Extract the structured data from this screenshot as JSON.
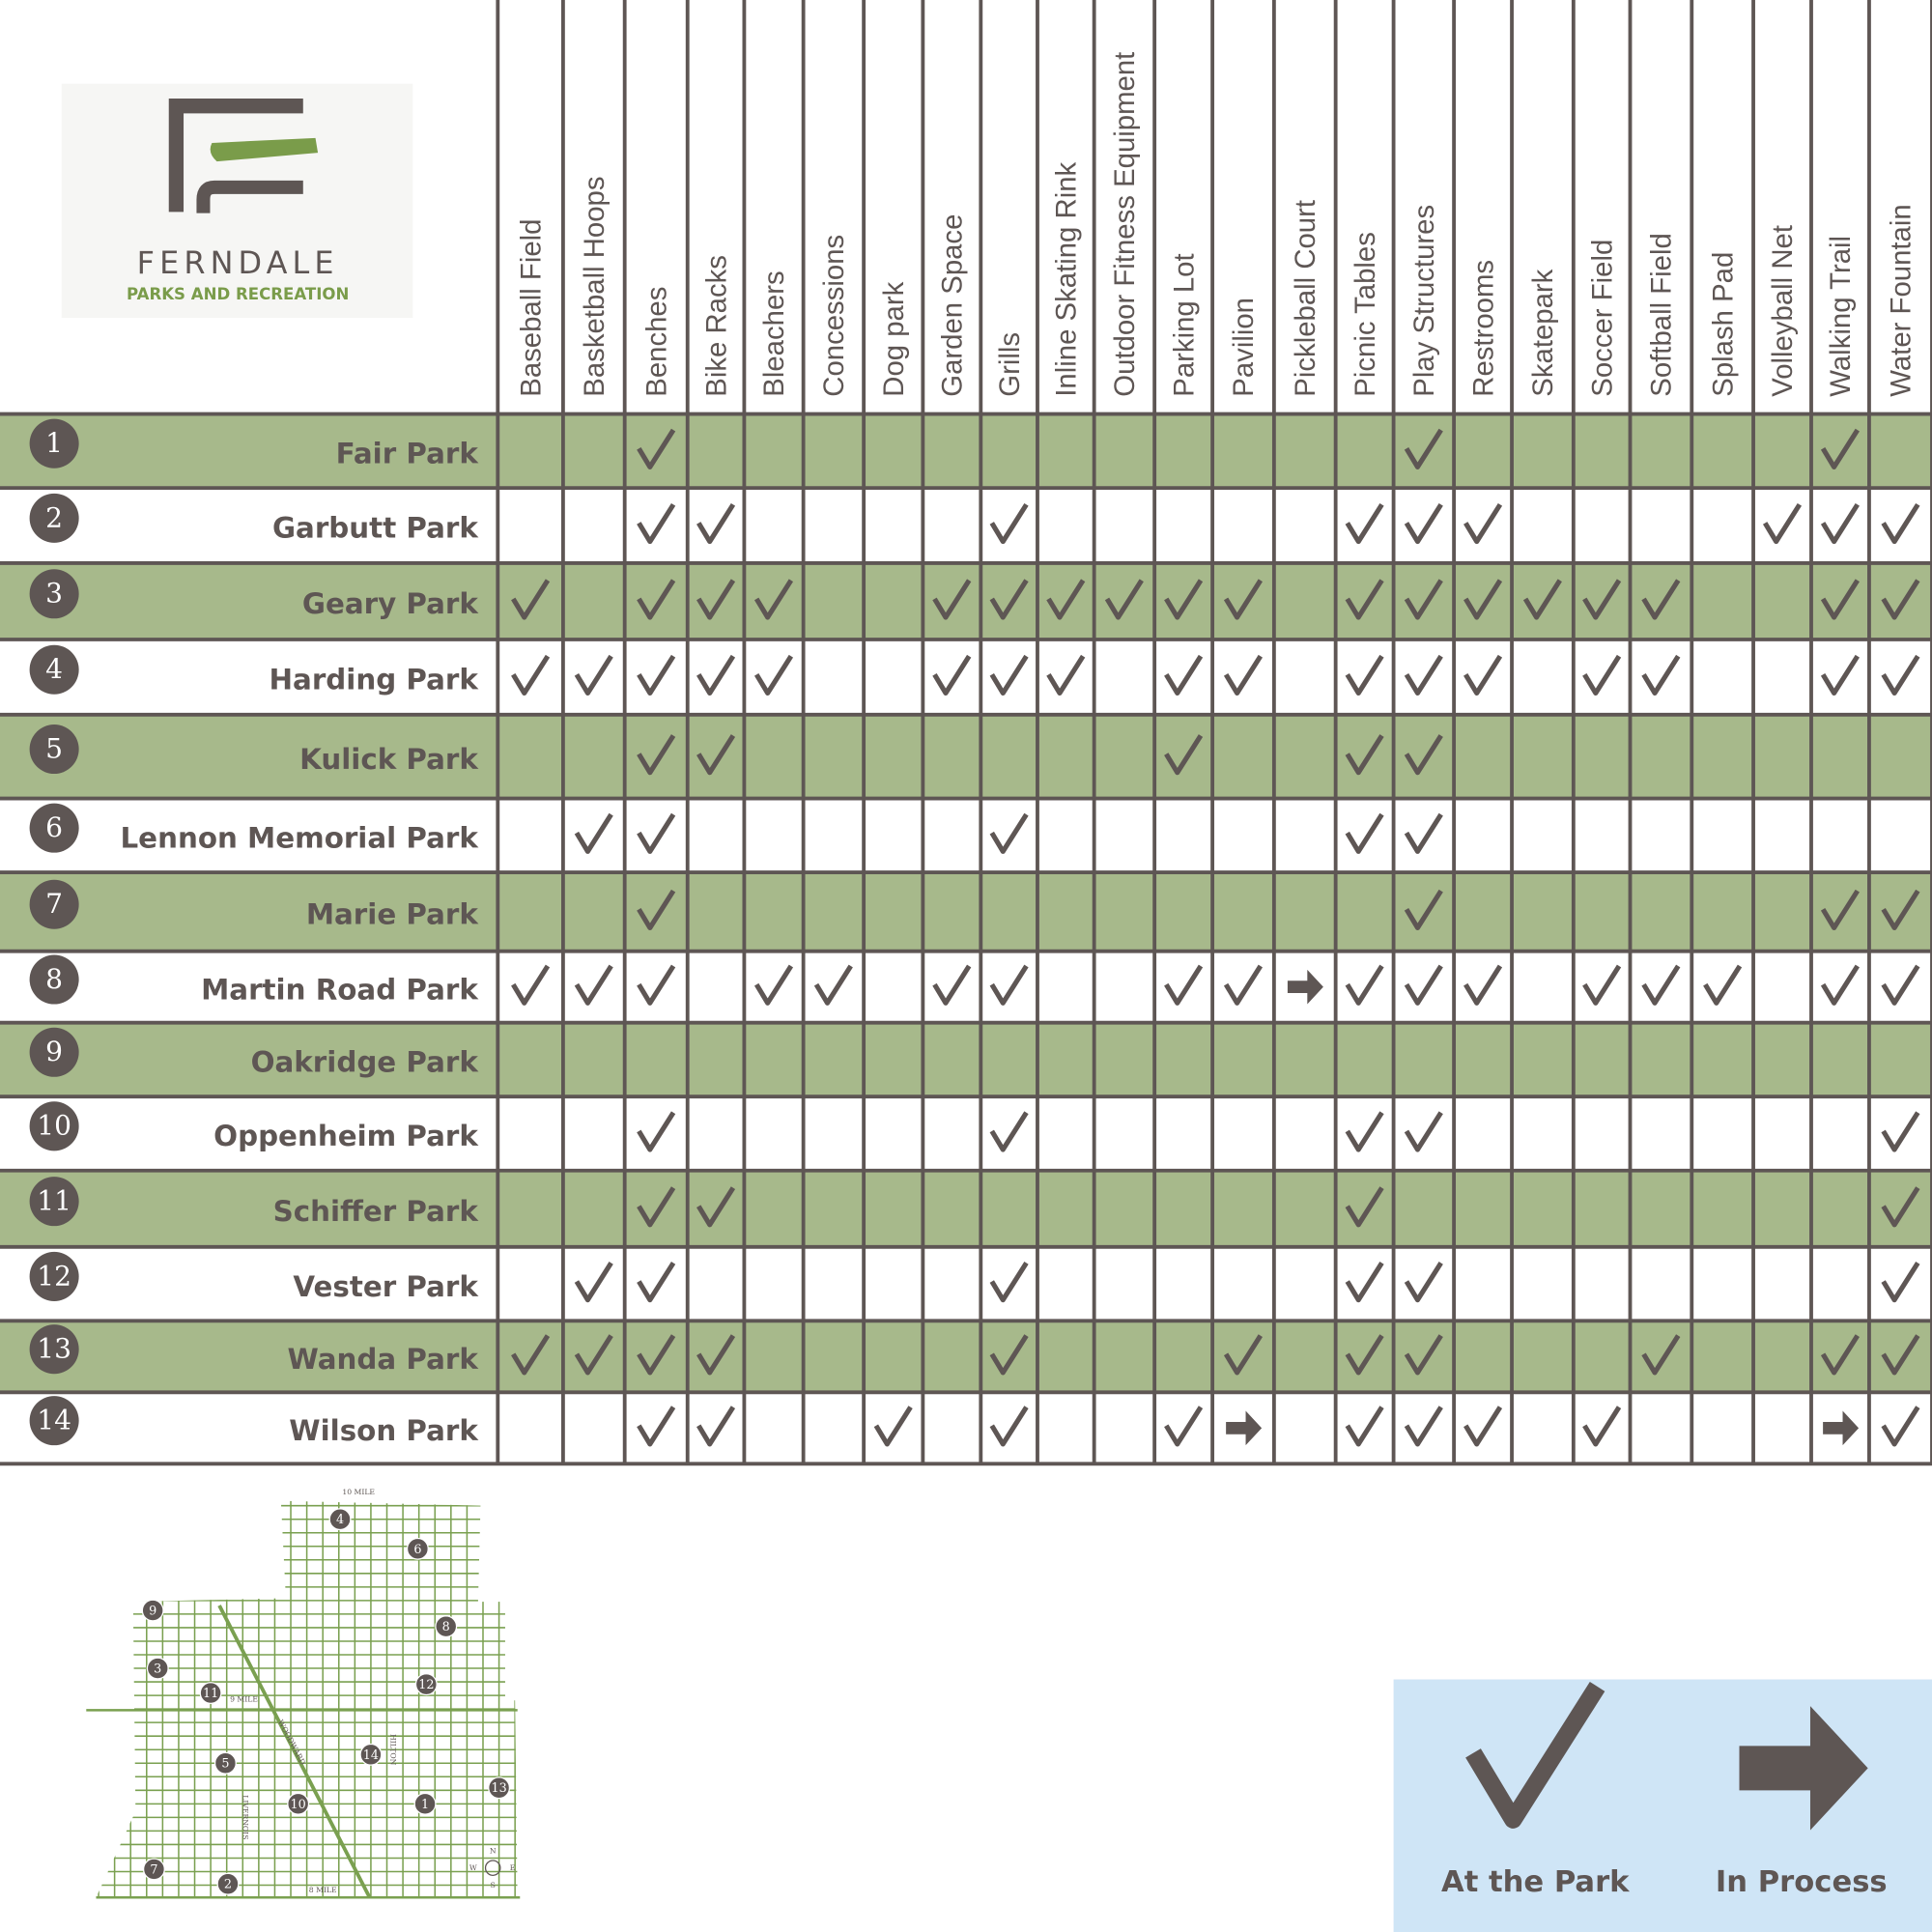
{
  "header": {
    "title": "FERNDALE",
    "subtitle": "PARKS AND RECREATION"
  },
  "table": {
    "columns": [
      "Baseball Field",
      "Basketball Hoops",
      "Benches",
      "Bike Racks",
      "Bleachers",
      "Concessions",
      "Dog park",
      "Garden Space",
      "Grills",
      "Inline Skating Rink",
      "Outdoor Fitness Equipment",
      "Parking Lot",
      "Pavilion",
      "Pickleball Court",
      "Picnic Tables",
      "Play Structures",
      "Restrooms",
      "Skatepark",
      "Soccer Field",
      "Softball Field",
      "Splash Pad",
      "Volleyball Net",
      "Walking Trail",
      "Water Fountain"
    ],
    "rows": [
      {
        "number": "1",
        "name": "Fair Park",
        "cells": [
          null,
          null,
          "check",
          null,
          null,
          null,
          null,
          null,
          null,
          null,
          null,
          null,
          null,
          null,
          null,
          "check",
          null,
          null,
          null,
          null,
          null,
          null,
          "check",
          null
        ]
      },
      {
        "number": "2",
        "name": "Garbutt Park",
        "cells": [
          null,
          null,
          "check",
          "check",
          null,
          null,
          null,
          null,
          "check",
          null,
          null,
          null,
          null,
          null,
          "check",
          "check",
          "check",
          null,
          null,
          null,
          null,
          "check",
          "check",
          "check"
        ]
      },
      {
        "number": "3",
        "name": "Geary Park",
        "cells": [
          "check",
          null,
          "check",
          "check",
          "check",
          null,
          null,
          "check",
          "check",
          "check",
          "check",
          "check",
          "check",
          null,
          "check",
          "check",
          "check",
          "check",
          "check",
          "check",
          null,
          null,
          "check",
          "check"
        ]
      },
      {
        "number": "4",
        "name": "Harding Park",
        "cells": [
          "check",
          "check",
          "check",
          "check",
          "check",
          null,
          null,
          "check",
          "check",
          "check",
          null,
          "check",
          "check",
          null,
          "check",
          "check",
          "check",
          null,
          "check",
          "check",
          null,
          null,
          "check",
          "check"
        ]
      },
      {
        "number": "5",
        "name": "Kulick Park",
        "cells": [
          null,
          null,
          "check",
          "check",
          null,
          null,
          null,
          null,
          null,
          null,
          null,
          "check",
          null,
          null,
          "check",
          "check",
          null,
          null,
          null,
          null,
          null,
          null,
          null,
          null
        ]
      },
      {
        "number": "6",
        "name": "Lennon Memorial Park",
        "cells": [
          null,
          "check",
          "check",
          null,
          null,
          null,
          null,
          null,
          "check",
          null,
          null,
          null,
          null,
          null,
          "check",
          "check",
          null,
          null,
          null,
          null,
          null,
          null,
          null,
          null
        ]
      },
      {
        "number": "7",
        "name": "Marie Park",
        "cells": [
          null,
          null,
          "check",
          null,
          null,
          null,
          null,
          null,
          null,
          null,
          null,
          null,
          null,
          null,
          null,
          "check",
          null,
          null,
          null,
          null,
          null,
          null,
          "check",
          "check"
        ]
      },
      {
        "number": "8",
        "name": "Martin Road Park",
        "cells": [
          "check",
          "check",
          "check",
          null,
          "check",
          "check",
          null,
          "check",
          "check",
          null,
          null,
          "check",
          "check",
          "arrow",
          "check",
          "check",
          "check",
          null,
          "check",
          "check",
          "check",
          null,
          "check",
          "check"
        ]
      },
      {
        "number": "9",
        "name": "Oakridge Park",
        "cells": [
          null,
          null,
          null,
          null,
          null,
          null,
          null,
          null,
          null,
          null,
          null,
          null,
          null,
          null,
          null,
          null,
          null,
          null,
          null,
          null,
          null,
          null,
          null,
          null
        ]
      },
      {
        "number": "10",
        "name": "Oppenheim Park",
        "cells": [
          null,
          null,
          "check",
          null,
          null,
          null,
          null,
          null,
          "check",
          null,
          null,
          null,
          null,
          null,
          "check",
          "check",
          null,
          null,
          null,
          null,
          null,
          null,
          null,
          "check"
        ]
      },
      {
        "number": "11",
        "name": "Schiffer Park",
        "cells": [
          null,
          null,
          "check",
          "check",
          null,
          null,
          null,
          null,
          null,
          null,
          null,
          null,
          null,
          null,
          "check",
          null,
          null,
          null,
          null,
          null,
          null,
          null,
          null,
          "check"
        ]
      },
      {
        "number": "12",
        "name": "Vester Park",
        "cells": [
          null,
          "check",
          "check",
          null,
          null,
          null,
          null,
          null,
          "check",
          null,
          null,
          null,
          null,
          null,
          "check",
          "check",
          null,
          null,
          null,
          null,
          null,
          null,
          null,
          "check"
        ]
      },
      {
        "number": "13",
        "name": "Wanda Park",
        "cells": [
          "check",
          "check",
          "check",
          "check",
          null,
          null,
          null,
          null,
          "check",
          null,
          null,
          null,
          "check",
          null,
          "check",
          "check",
          null,
          null,
          null,
          "check",
          null,
          null,
          "check",
          "check"
        ]
      },
      {
        "number": "14",
        "name": "Wilson Park",
        "cells": [
          null,
          null,
          "check",
          "check",
          null,
          null,
          "check",
          null,
          "check",
          null,
          null,
          "check",
          "arrow",
          null,
          "check",
          "check",
          "check",
          null,
          "check",
          null,
          null,
          null,
          "arrow",
          "check"
        ]
      }
    ]
  },
  "legend": [
    {
      "symbol": "check",
      "label": "At the Park"
    },
    {
      "symbol": "arrow",
      "label": "In Process"
    }
  ],
  "map": {
    "road_labels": [
      "10 MILE",
      "9 MILE",
      "8 MILE",
      "WOODWARD",
      "HILTON",
      "LIVERNOIS"
    ],
    "compass": [
      "N",
      "E",
      "S",
      "W"
    ],
    "markers": [
      "4",
      "6",
      "9",
      "8",
      "3",
      "12",
      "11",
      "5",
      "14",
      "13",
      "10",
      "1",
      "7",
      "2"
    ]
  }
}
